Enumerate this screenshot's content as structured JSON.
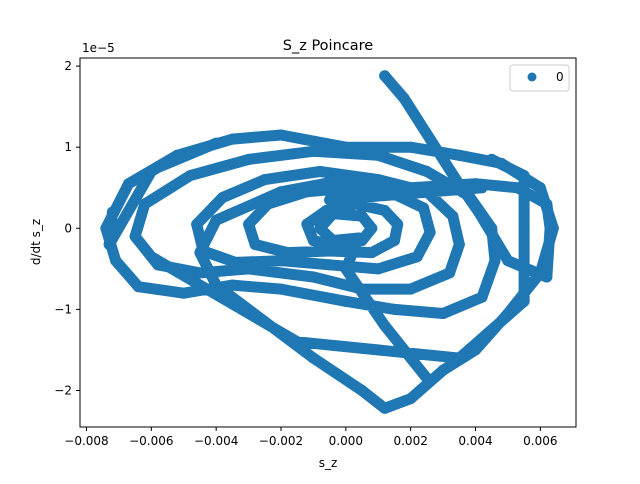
{
  "chart_data": {
    "type": "scatter",
    "title": "S_z Poincare",
    "xlabel": "s_z",
    "ylabel": "d/dt s_z",
    "y_offset_text": "1e−5",
    "xlim": [
      -0.0082,
      0.0071
    ],
    "ylim": [
      -2.45,
      2.1
    ],
    "y_multiplier": 1e-05,
    "x_ticks": [
      -0.008,
      -0.006,
      -0.004,
      -0.002,
      0.0,
      0.002,
      0.004,
      0.006
    ],
    "x_tick_labels": [
      "−0.008",
      "−0.006",
      "−0.004",
      "−0.002",
      "0.000",
      "0.002",
      "0.004",
      "0.006"
    ],
    "y_ticks": [
      -2,
      -1,
      0,
      1,
      2
    ],
    "y_tick_labels": [
      "−2",
      "−1",
      "0",
      "1",
      "2"
    ],
    "grid": false,
    "legend": {
      "placement": "top-right",
      "entries": [
        "0"
      ]
    },
    "series": [
      {
        "name": "0",
        "color": "#1f77b4",
        "points": [
          [
            0.0012,
            1.88
          ],
          [
            0.0018,
            1.6
          ],
          [
            0.0026,
            1.1
          ],
          [
            0.0034,
            0.6
          ],
          [
            0.0041,
            0.2
          ],
          [
            0.005,
            -0.4
          ],
          [
            0.0062,
            -0.6
          ],
          [
            0.0063,
            0.0
          ],
          [
            0.0062,
            0.3
          ],
          [
            0.0053,
            0.5
          ],
          [
            0.004,
            0.55
          ],
          [
            0.002,
            0.5
          ],
          [
            0.0,
            0.6
          ],
          [
            -0.002,
            0.45
          ],
          [
            -0.004,
            0.1
          ],
          [
            -0.0045,
            -0.3
          ],
          [
            -0.004,
            -0.7
          ],
          [
            -0.0025,
            -1.15
          ],
          [
            -0.001,
            -1.6
          ],
          [
            0.0005,
            -2.0
          ],
          [
            0.0012,
            -2.22
          ],
          [
            0.002,
            -2.1
          ],
          [
            0.003,
            -1.75
          ],
          [
            0.004,
            -1.5
          ],
          [
            0.005,
            -1.05
          ],
          [
            0.006,
            -0.55
          ],
          [
            0.0064,
            0.0
          ],
          [
            0.006,
            0.5
          ],
          [
            0.0048,
            0.8
          ],
          [
            0.0035,
            0.9
          ],
          [
            0.002,
            1.0
          ],
          [
            0.0,
            1.0
          ],
          [
            -0.002,
            1.15
          ],
          [
            -0.0035,
            1.1
          ],
          [
            -0.0052,
            0.9
          ],
          [
            -0.0067,
            0.55
          ],
          [
            -0.0074,
            0.0
          ],
          [
            -0.0071,
            -0.4
          ],
          [
            -0.0064,
            -0.72
          ],
          [
            -0.005,
            -0.8
          ],
          [
            -0.0035,
            -0.7
          ],
          [
            -0.002,
            -0.75
          ],
          [
            0.0,
            -0.9
          ],
          [
            0.0015,
            -1.0
          ],
          [
            0.003,
            -1.05
          ],
          [
            0.0042,
            -0.85
          ],
          [
            0.0046,
            -0.4
          ],
          [
            0.0045,
            0.0
          ],
          [
            0.0038,
            0.4
          ],
          [
            0.0025,
            0.7
          ],
          [
            0.001,
            0.9
          ],
          [
            -0.001,
            0.95
          ],
          [
            -0.003,
            0.85
          ],
          [
            -0.0048,
            0.65
          ],
          [
            -0.0062,
            0.3
          ],
          [
            -0.0065,
            -0.1
          ],
          [
            -0.0058,
            -0.45
          ],
          [
            -0.0045,
            -0.55
          ],
          [
            -0.003,
            -0.5
          ],
          [
            -0.001,
            -0.6
          ],
          [
            0.0005,
            -0.75
          ],
          [
            0.002,
            -0.75
          ],
          [
            0.0032,
            -0.55
          ],
          [
            0.0035,
            -0.2
          ],
          [
            0.0033,
            0.15
          ],
          [
            0.0025,
            0.45
          ],
          [
            0.001,
            0.6
          ],
          [
            -0.0008,
            0.7
          ],
          [
            -0.0025,
            0.6
          ],
          [
            -0.0038,
            0.38
          ],
          [
            -0.0046,
            0.05
          ],
          [
            -0.0044,
            -0.28
          ],
          [
            -0.0034,
            -0.42
          ],
          [
            -0.002,
            -0.4
          ],
          [
            -0.0005,
            -0.45
          ],
          [
            0.001,
            -0.5
          ],
          [
            0.0022,
            -0.35
          ],
          [
            0.0026,
            -0.05
          ],
          [
            0.0024,
            0.25
          ],
          [
            0.0015,
            0.42
          ],
          [
            0.0002,
            0.5
          ],
          [
            -0.0012,
            0.45
          ],
          [
            -0.0024,
            0.3
          ],
          [
            -0.003,
            0.05
          ],
          [
            -0.0028,
            -0.2
          ],
          [
            -0.0018,
            -0.3
          ],
          [
            -0.0005,
            -0.28
          ],
          [
            0.0008,
            -0.3
          ],
          [
            0.0015,
            -0.15
          ],
          [
            0.0016,
            0.05
          ],
          [
            0.0012,
            0.22
          ],
          [
            0.0003,
            0.3
          ],
          [
            -0.0006,
            0.22
          ],
          [
            -0.0012,
            0.05
          ],
          [
            -0.001,
            -0.15
          ],
          [
            -0.0003,
            -0.22
          ],
          [
            0.0005,
            -0.15
          ],
          [
            0.0008,
            0.0
          ],
          [
            0.0005,
            0.15
          ],
          [
            -0.0004,
            0.18
          ],
          [
            -0.0008,
            0.0
          ],
          [
            -0.0004,
            -0.15
          ],
          [
            0.0004,
            -0.12
          ],
          [
            0.0,
            -0.5
          ],
          [
            0.0012,
            -1.2
          ],
          [
            0.002,
            -1.6
          ],
          [
            0.0025,
            -1.85
          ],
          [
            -0.0072,
            0.2
          ],
          [
            -0.0073,
            -0.2
          ],
          [
            -0.006,
            0.7
          ],
          [
            -0.0058,
            0.75
          ],
          [
            -0.004,
            1.05
          ],
          [
            0.0045,
            0.85
          ],
          [
            0.0055,
            0.65
          ],
          [
            0.0055,
            -0.9
          ],
          [
            0.0035,
            -1.6
          ],
          [
            -0.0015,
            -1.4
          ],
          [
            -0.006,
            -0.35
          ],
          [
            0.0042,
            0.5
          ],
          [
            -0.0005,
            0.35
          ]
        ]
      }
    ]
  }
}
